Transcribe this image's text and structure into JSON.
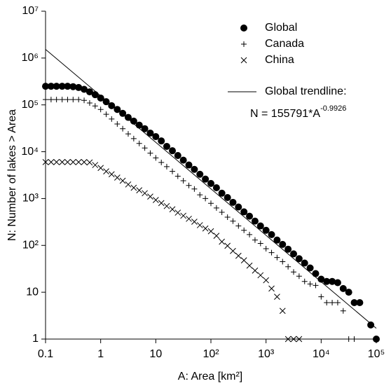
{
  "chart_data": {
    "type": "scatter",
    "x_label": "A: Area [km²]",
    "y_label": "N: Number of lakes > Area",
    "x_log": true,
    "y_log": true,
    "xlim": [
      0.1,
      100000
    ],
    "ylim": [
      1,
      10000000
    ],
    "xticks": [
      0.1,
      1,
      10,
      {
        "value": 100,
        "label": "10²"
      },
      {
        "value": 1000,
        "label": "10³"
      },
      {
        "value": 10000,
        "label": "10⁴"
      },
      {
        "value": 100000,
        "label": "10⁵"
      }
    ],
    "yticks": [
      1,
      10,
      {
        "value": 100,
        "label": "10²"
      },
      {
        "value": 1000,
        "label": "10³"
      },
      {
        "value": 10000,
        "label": "10⁴"
      },
      {
        "value": 100000,
        "label": "10⁵"
      },
      {
        "value": 1000000,
        "label": "10⁶"
      },
      {
        "value": 10000000,
        "label": "10⁷"
      }
    ],
    "x": [
      0.1,
      0.126,
      0.158,
      0.2,
      0.251,
      0.316,
      0.398,
      0.501,
      0.631,
      0.794,
      1,
      1.26,
      1.58,
      2,
      2.51,
      3.16,
      3.98,
      5.01,
      6.31,
      7.94,
      10,
      12.6,
      15.8,
      20,
      25.1,
      31.6,
      39.8,
      50.1,
      63.1,
      79.4,
      100,
      126,
      158,
      200,
      251,
      316,
      398,
      501,
      631,
      794,
      1000,
      1259,
      1585,
      1995,
      2512,
      3162,
      3981,
      5012,
      6310,
      7943,
      10000,
      12589,
      15849,
      19953,
      25119,
      31623,
      39811,
      50119,
      63096,
      79433,
      100000
    ],
    "series": [
      {
        "name": "Global",
        "color": "#000000",
        "marker": "circle",
        "values": [
          250000,
          250000,
          250000,
          250000,
          250000,
          245000,
          235000,
          215000,
          190000,
          165000,
          140000,
          117000,
          96000,
          80000,
          66000,
          54000,
          45000,
          37000,
          31000,
          25000,
          21000,
          17000,
          13000,
          10500,
          8300,
          6600,
          5200,
          4200,
          3300,
          2600,
          2100,
          1700,
          1300,
          1050,
          830,
          660,
          520,
          420,
          330,
          260,
          210,
          170,
          130,
          105,
          83,
          66,
          52,
          42,
          33,
          25,
          19,
          17,
          17,
          16,
          12,
          10,
          6,
          6,
          null,
          2,
          1
        ]
      },
      {
        "name": "Canada",
        "color": "#000000",
        "marker": "plus",
        "values": [
          130000,
          130000,
          130000,
          130000,
          130000,
          130000,
          130000,
          125000,
          110000,
          95000,
          80000,
          63000,
          50000,
          39000,
          31000,
          24000,
          19000,
          15000,
          12000,
          9300,
          7400,
          5900,
          4800,
          3800,
          3000,
          2400,
          1900,
          1600,
          1200,
          1000,
          790,
          630,
          510,
          400,
          330,
          260,
          210,
          170,
          130,
          110,
          85,
          70,
          55,
          45,
          35,
          27,
          22,
          17,
          15,
          14,
          8,
          6,
          6,
          6,
          4,
          1,
          1,
          null,
          null,
          null,
          null
        ]
      },
      {
        "name": "China",
        "color": "#000000",
        "marker": "x",
        "values": [
          6000,
          6000,
          6000,
          6000,
          6000,
          6000,
          6000,
          6000,
          5900,
          5200,
          4500,
          3800,
          3300,
          2800,
          2400,
          2000,
          1700,
          1500,
          1300,
          1100,
          930,
          800,
          690,
          590,
          500,
          430,
          370,
          320,
          270,
          230,
          200,
          160,
          120,
          98,
          76,
          60,
          48,
          37,
          29,
          23,
          18,
          12,
          8,
          4,
          1,
          1,
          1,
          null,
          null,
          null,
          null,
          null,
          null,
          null,
          null,
          null,
          null,
          null,
          null,
          null,
          null
        ]
      }
    ],
    "trendline": {
      "name": "Global trendline:",
      "coefficient": 155791,
      "exponent": -0.9926,
      "color": "#000000",
      "equation": "N = 155791*A",
      "equation_exponent": "-0.9926"
    }
  }
}
